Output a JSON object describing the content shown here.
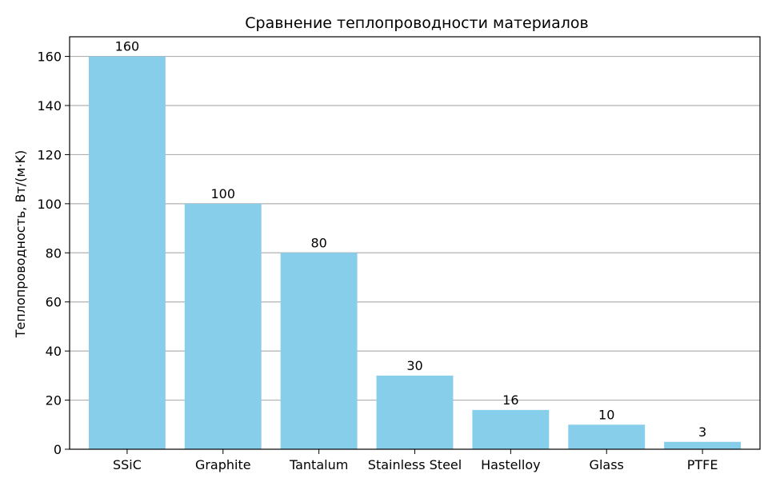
{
  "chart_data": {
    "type": "bar",
    "title": "Сравнение теплопроводности материалов",
    "xlabel": "",
    "ylabel": "Теплопроводность, Вт/(м·K)",
    "categories": [
      "SSiC",
      "Graphite",
      "Tantalum",
      "Stainless Steel",
      "Hastelloy",
      "Glass",
      "PTFE"
    ],
    "values": [
      160,
      100,
      80,
      30,
      16,
      10,
      3
    ],
    "ylim": [
      0,
      168
    ],
    "yticks": [
      0,
      20,
      40,
      60,
      80,
      100,
      120,
      140,
      160
    ],
    "grid": "horizontal",
    "colors": {
      "bar": "#87CEEB",
      "grid": "#b0b0b0",
      "axis": "#000000"
    }
  }
}
